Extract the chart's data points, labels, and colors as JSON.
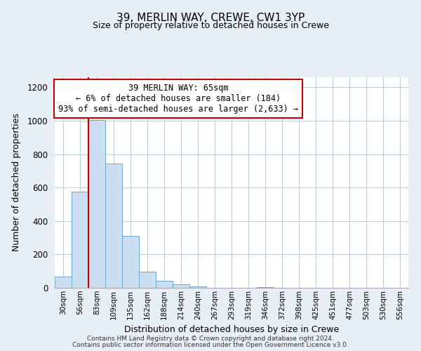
{
  "title": "39, MERLIN WAY, CREWE, CW1 3YP",
  "subtitle": "Size of property relative to detached houses in Crewe",
  "xlabel": "Distribution of detached houses by size in Crewe",
  "ylabel": "Number of detached properties",
  "bar_labels": [
    "30sqm",
    "56sqm",
    "83sqm",
    "109sqm",
    "135sqm",
    "162sqm",
    "188sqm",
    "214sqm",
    "240sqm",
    "267sqm",
    "293sqm",
    "319sqm",
    "346sqm",
    "372sqm",
    "398sqm",
    "425sqm",
    "451sqm",
    "477sqm",
    "503sqm",
    "530sqm",
    "556sqm"
  ],
  "bar_values": [
    68,
    575,
    1005,
    745,
    310,
    95,
    40,
    22,
    10,
    0,
    0,
    0,
    5,
    0,
    0,
    0,
    0,
    0,
    0,
    0,
    0
  ],
  "bar_color": "#ccdff0",
  "bar_edge_color": "#6aaad4",
  "property_line_color": "#cc0000",
  "annotation_title": "39 MERLIN WAY: 65sqm",
  "annotation_line1": "← 6% of detached houses are smaller (184)",
  "annotation_line2": "93% of semi-detached houses are larger (2,633) →",
  "annotation_box_color": "#ffffff",
  "annotation_box_edge": "#cc0000",
  "ylim": [
    0,
    1260
  ],
  "yticks": [
    0,
    200,
    400,
    600,
    800,
    1000,
    1200
  ],
  "footer1": "Contains HM Land Registry data © Crown copyright and database right 2024.",
  "footer2": "Contains public sector information licensed under the Open Government Licence v3.0.",
  "background_color": "#e8eef5",
  "plot_bg_color": "#ffffff",
  "grid_color": "#c0d0e0"
}
